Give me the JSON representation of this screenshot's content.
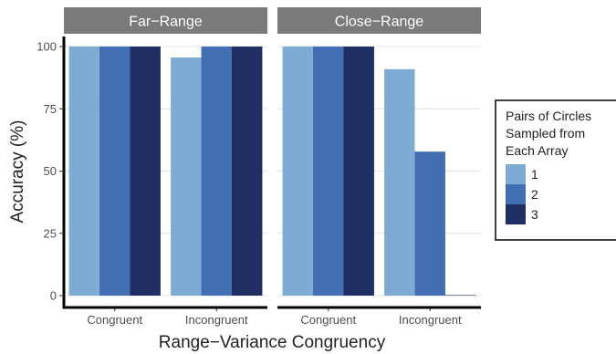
{
  "chart_data": {
    "type": "bar",
    "xlabel": "Range−Variance Congruency",
    "ylabel": "Accuracy (%)",
    "ylim": [
      0,
      100
    ],
    "yticks": [
      "0",
      "25",
      "50",
      "75",
      "100"
    ],
    "categories": [
      "Congruent",
      "Incongruent"
    ],
    "grid": true,
    "legend": {
      "title": [
        "Pairs of Circles",
        "Sampled from",
        "Each Array"
      ],
      "position": "right",
      "entries": [
        "1",
        "2",
        "3"
      ]
    },
    "colors": [
      "#7eabd4",
      "#426fb4",
      "#1f2f63"
    ],
    "panels": [
      {
        "title": "Far−Range",
        "series": [
          {
            "name": "1",
            "values": [
              100,
              95.6
            ]
          },
          {
            "name": "2",
            "values": [
              100,
              100
            ]
          },
          {
            "name": "3",
            "values": [
              100,
              100
            ]
          }
        ]
      },
      {
        "title": "Close−Range",
        "series": [
          {
            "name": "1",
            "values": [
              100,
              90.9
            ]
          },
          {
            "name": "2",
            "values": [
              100,
              57.8
            ]
          },
          {
            "name": "3",
            "values": [
              100,
              0
            ]
          }
        ]
      }
    ]
  }
}
